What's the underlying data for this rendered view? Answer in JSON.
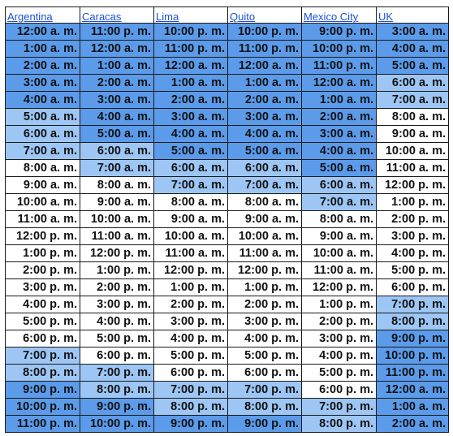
{
  "colors": {
    "dark": "#5b9bea",
    "light": "#9dc6f5",
    "white": "#ffffff",
    "header_link": "#1a4fd6"
  },
  "headers": [
    "Argentina",
    "Caracas",
    "Lima",
    "Quito",
    "Mexico City",
    "UK"
  ],
  "rows": [
    [
      "12:00 a. m.",
      "11:00 p. m.",
      "10:00 p. m.",
      "10:00 p. m.",
      "9:00 p. m.",
      "3:00 a. m."
    ],
    [
      "1:00 a. m.",
      "12:00 a. m.",
      "11:00 p. m.",
      "11:00 p. m.",
      "10:00 p. m.",
      "4:00 a. m."
    ],
    [
      "2:00 a. m.",
      "1:00 a. m.",
      "12:00 a. m.",
      "12:00 a. m.",
      "11:00 p. m.",
      "5:00 a. m."
    ],
    [
      "3:00 a. m.",
      "2:00 a. m.",
      "1:00 a. m.",
      "1:00 a. m.",
      "12:00 a. m.",
      "6:00 a. m."
    ],
    [
      "4:00 a. m.",
      "3:00 a. m.",
      "2:00 a. m.",
      "2:00 a. m.",
      "1:00 a. m.",
      "7:00 a. m."
    ],
    [
      "5:00 a. m.",
      "4:00 a. m.",
      "3:00 a. m.",
      "3:00 a. m.",
      "2:00 a. m.",
      "8:00 a. m."
    ],
    [
      "6:00 a. m.",
      "5:00 a. m.",
      "4:00 a. m.",
      "4:00 a. m.",
      "3:00 a. m.",
      "9:00 a. m."
    ],
    [
      "7:00 a. m.",
      "6:00 a. m.",
      "5:00 a. m.",
      "5:00 a. m.",
      "4:00 a. m.",
      "10:00 a. m."
    ],
    [
      "8:00 a. m.",
      "7:00 a. m.",
      "6:00 a. m.",
      "6:00 a. m.",
      "5:00 a. m.",
      "11:00 a. m."
    ],
    [
      "9:00 a. m.",
      "8:00 a. m.",
      "7:00 a. m.",
      "7:00 a. m.",
      "6:00 a. m.",
      "12:00 p. m."
    ],
    [
      "10:00 a. m.",
      "9:00 a. m.",
      "8:00 a. m.",
      "8:00 a. m.",
      "7:00 a. m.",
      "1:00 p. m."
    ],
    [
      "11:00 a. m.",
      "10:00 a. m.",
      "9:00 a. m.",
      "9:00 a. m.",
      "8:00 a. m.",
      "2:00 p. m."
    ],
    [
      "12:00 p. m.",
      "11:00 a. m.",
      "10:00 a. m.",
      "10:00 a. m.",
      "9:00 a. m.",
      "3:00 p. m."
    ],
    [
      "1:00 p. m.",
      "12:00 p. m.",
      "11:00 a. m.",
      "11:00 a. m.",
      "10:00 a. m.",
      "4:00 p. m."
    ],
    [
      "2:00 p. m.",
      "1:00 p. m.",
      "12:00 p. m.",
      "12:00 p. m.",
      "11:00 a. m.",
      "5:00 p. m."
    ],
    [
      "3:00 p. m.",
      "2:00 p. m.",
      "1:00 p. m.",
      "1:00 p. m.",
      "12:00 p. m.",
      "6:00 p. m."
    ],
    [
      "4:00 p. m.",
      "3:00 p. m.",
      "2:00 p. m.",
      "2:00 p. m.",
      "1:00 p. m.",
      "7:00 p. m."
    ],
    [
      "5:00 p. m.",
      "4:00 p. m.",
      "3:00 p. m.",
      "3:00 p. m.",
      "2:00 p. m.",
      "8:00 p. m."
    ],
    [
      "6:00 p. m.",
      "5:00 p. m.",
      "4:00 p. m.",
      "4:00 p. m.",
      "3:00 p. m.",
      "9:00 p. m."
    ],
    [
      "7:00 p. m.",
      "6:00 p. m.",
      "5:00 p. m.",
      "5:00 p. m.",
      "4:00 p. m.",
      "10:00 p. m."
    ],
    [
      "8:00 p. m.",
      "7:00 p. m.",
      "6:00 p. m.",
      "6:00 p. m.",
      "5:00 p. m.",
      "11:00 p. m."
    ],
    [
      "9:00 p. m.",
      "8:00 p. m.",
      "7:00 p. m.",
      "7:00 p. m.",
      "6:00 p. m.",
      "12:00 a. m."
    ],
    [
      "10:00 p. m.",
      "9:00 p. m.",
      "8:00 p. m.",
      "8:00 p. m.",
      "7:00 p. m.",
      "1:00 a. m."
    ],
    [
      "11:00 p. m.",
      "10:00 p. m.",
      "9:00 p. m.",
      "9:00 p. m.",
      "8:00 p. m.",
      "2:00 a. m."
    ]
  ],
  "shading": [
    [
      "dark",
      "dark",
      "dark",
      "dark",
      "dark",
      "dark"
    ],
    [
      "dark",
      "dark",
      "dark",
      "dark",
      "dark",
      "dark"
    ],
    [
      "dark",
      "dark",
      "dark",
      "dark",
      "dark",
      "dark"
    ],
    [
      "dark",
      "dark",
      "dark",
      "dark",
      "dark",
      "light"
    ],
    [
      "dark",
      "dark",
      "dark",
      "dark",
      "dark",
      "light"
    ],
    [
      "light",
      "dark",
      "dark",
      "dark",
      "dark",
      "white"
    ],
    [
      "light",
      "dark",
      "dark",
      "dark",
      "dark",
      "white"
    ],
    [
      "light",
      "light",
      "dark",
      "dark",
      "dark",
      "white"
    ],
    [
      "white",
      "light",
      "light",
      "light",
      "dark",
      "white"
    ],
    [
      "white",
      "white",
      "light",
      "light",
      "light",
      "white"
    ],
    [
      "white",
      "white",
      "white",
      "white",
      "light",
      "white"
    ],
    [
      "white",
      "white",
      "white",
      "white",
      "white",
      "white"
    ],
    [
      "white",
      "white",
      "white",
      "white",
      "white",
      "white"
    ],
    [
      "white",
      "white",
      "white",
      "white",
      "white",
      "white"
    ],
    [
      "white",
      "white",
      "white",
      "white",
      "white",
      "white"
    ],
    [
      "white",
      "white",
      "white",
      "white",
      "white",
      "white"
    ],
    [
      "white",
      "white",
      "white",
      "white",
      "white",
      "light"
    ],
    [
      "white",
      "white",
      "white",
      "white",
      "white",
      "light"
    ],
    [
      "white",
      "white",
      "white",
      "white",
      "white",
      "dark"
    ],
    [
      "light",
      "white",
      "white",
      "white",
      "white",
      "dark"
    ],
    [
      "light",
      "light",
      "white",
      "white",
      "white",
      "dark"
    ],
    [
      "dark",
      "light",
      "light",
      "light",
      "white",
      "dark"
    ],
    [
      "dark",
      "dark",
      "light",
      "light",
      "light",
      "dark"
    ],
    [
      "dark",
      "dark",
      "dark",
      "dark",
      "light",
      "dark"
    ]
  ]
}
